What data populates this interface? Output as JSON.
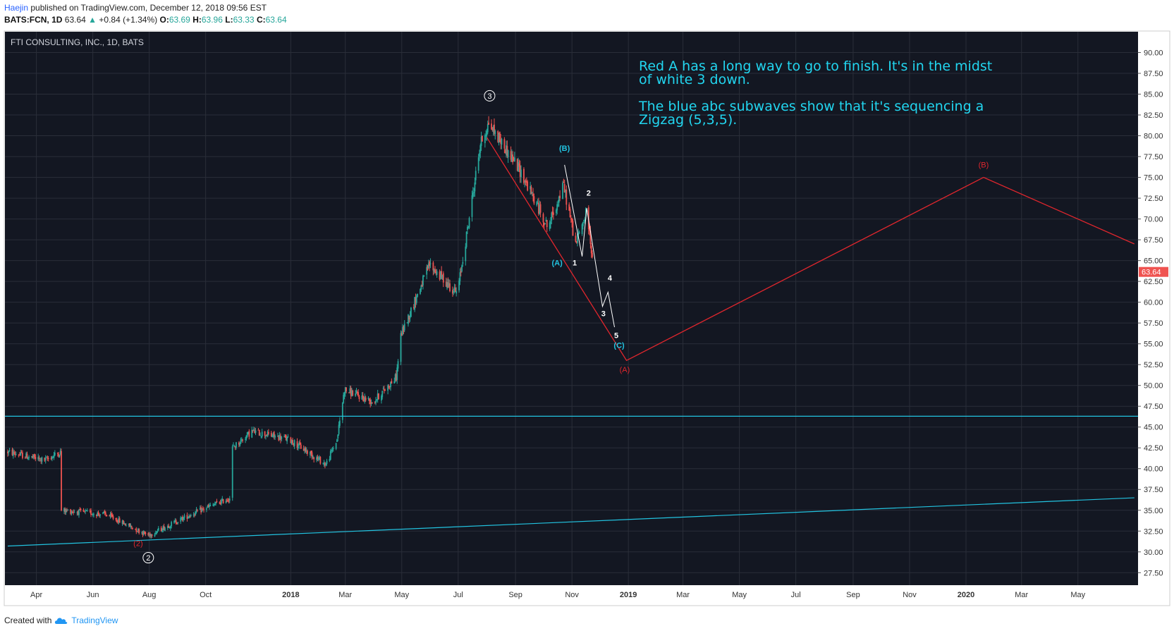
{
  "header": {
    "author": "Haejin",
    "published": "published on TradingView.com, December 12, 2018 09:56 EST",
    "symbol": "BATS:FCN, 1D",
    "last": "63.64",
    "change": "+0.84 (+1.34%)",
    "o_label": "O:",
    "o_value": "63.69",
    "h_label": "H:",
    "h_value": "63.96",
    "l_label": "L:",
    "l_value": "63.33",
    "c_label": "C:",
    "c_value": "63.64",
    "up_arrow": "▲"
  },
  "footer": {
    "created_with": "Created with",
    "brand": "TradingView"
  },
  "chart_data": {
    "type": "candlestick",
    "title": "FTI CONSULTING, INC., 1D, BATS",
    "ylim": [
      26.0,
      92.5
    ],
    "y_ticks": [
      "27.50",
      "30.00",
      "32.50",
      "35.00",
      "37.50",
      "40.00",
      "42.50",
      "45.00",
      "47.50",
      "50.00",
      "52.50",
      "55.00",
      "57.50",
      "60.00",
      "62.50",
      "65.00",
      "67.50",
      "70.00",
      "72.50",
      "75.00",
      "77.50",
      "80.00",
      "82.50",
      "85.00",
      "87.50",
      "90.00"
    ],
    "x_ticks": [
      "Apr",
      "Jun",
      "Aug",
      "Oct",
      "2018",
      "Mar",
      "May",
      "Jul",
      "Sep",
      "Nov",
      "2019",
      "Mar",
      "May",
      "Jul",
      "Sep",
      "Nov",
      "2020",
      "Mar",
      "May"
    ],
    "last_price_label": "63.64",
    "price_path_anchors": [
      {
        "date": "2017-03-01",
        "price": 42.0
      },
      {
        "date": "2017-04-10",
        "price": 41.0
      },
      {
        "date": "2017-04-27",
        "price": 42.0
      },
      {
        "date": "2017-04-28",
        "price": 35.0
      },
      {
        "date": "2017-06-15",
        "price": 34.5
      },
      {
        "date": "2017-07-31",
        "price": 32.0
      },
      {
        "date": "2017-09-15",
        "price": 34.5
      },
      {
        "date": "2017-10-28",
        "price": 36.5
      },
      {
        "date": "2017-10-30",
        "price": 42.5
      },
      {
        "date": "2017-11-20",
        "price": 44.5
      },
      {
        "date": "2017-12-31",
        "price": 43.5
      },
      {
        "date": "2018-02-08",
        "price": 40.5
      },
      {
        "date": "2018-02-20",
        "price": 43.5
      },
      {
        "date": "2018-02-28",
        "price": 49.5
      },
      {
        "date": "2018-03-31",
        "price": 48.0
      },
      {
        "date": "2018-04-25",
        "price": 51.0
      },
      {
        "date": "2018-04-30",
        "price": 56.0
      },
      {
        "date": "2018-05-31",
        "price": 64.5
      },
      {
        "date": "2018-06-30",
        "price": 61.0
      },
      {
        "date": "2018-07-10",
        "price": 68.0
      },
      {
        "date": "2018-07-25",
        "price": 79.0
      },
      {
        "date": "2018-08-03",
        "price": 81.5
      },
      {
        "date": "2018-09-05",
        "price": 76.0
      },
      {
        "date": "2018-10-06",
        "price": 69.0
      },
      {
        "date": "2018-10-23",
        "price": 74.0
      },
      {
        "date": "2018-11-05",
        "price": 67.0
      },
      {
        "date": "2018-11-17",
        "price": 71.0
      },
      {
        "date": "2018-11-25",
        "price": 63.64
      }
    ],
    "overlays": {
      "red_wave": [
        {
          "date": "2018-08-01",
          "price": 79.8
        },
        {
          "date": "2018-12-30",
          "price": 53.0
        },
        {
          "date": "2020-01-20",
          "price": 75.0
        },
        {
          "date": "2020-07-01",
          "price": 67.0
        }
      ],
      "white_wave": [
        {
          "date": "2018-10-24",
          "price": 76.5
        },
        {
          "date": "2018-11-12",
          "price": 65.5
        },
        {
          "date": "2018-11-17",
          "price": 71.3
        },
        {
          "date": "2018-12-04",
          "price": 59.5
        },
        {
          "date": "2018-12-10",
          "price": 61.2
        },
        {
          "date": "2018-12-17",
          "price": 57.0
        }
      ],
      "cyan_horizontal": {
        "price": 46.3
      },
      "cyan_trendline": [
        {
          "date": "2017-03-01",
          "price": 30.7
        },
        {
          "date": "2020-07-01",
          "price": 36.5
        }
      ]
    },
    "labels": [
      {
        "text": "(B)",
        "color": "cyan",
        "date": "2018-10-24",
        "price": 78.2
      },
      {
        "text": "(A)",
        "color": "cyan",
        "date": "2018-10-16",
        "price": 64.4
      },
      {
        "text": "1",
        "color": "white",
        "date": "2018-11-04",
        "price": 64.4
      },
      {
        "text": "2",
        "color": "white",
        "date": "2018-11-19",
        "price": 72.8
      },
      {
        "text": "3",
        "color": "white",
        "date": "2018-12-05",
        "price": 58.3
      },
      {
        "text": "4",
        "color": "white",
        "date": "2018-12-12",
        "price": 62.6
      },
      {
        "text": "5",
        "color": "white",
        "date": "2018-12-19",
        "price": 55.7
      },
      {
        "text": "(C)",
        "color": "cyan",
        "date": "2018-12-22",
        "price": 54.5
      },
      {
        "text": "(A)",
        "color": "red",
        "date": "2018-12-28",
        "price": 51.6
      },
      {
        "text": "(B)",
        "color": "red",
        "date": "2020-01-20",
        "price": 76.2
      },
      {
        "text": "(2)",
        "color": "red",
        "date": "2017-07-20",
        "price": 30.7
      }
    ],
    "circled_labels": [
      {
        "text": "3",
        "date": "2018-08-04",
        "price": 84.8
      },
      {
        "text": "2",
        "date": "2017-07-31",
        "price": 29.3
      }
    ],
    "annotation": [
      "Red A has a long way to go to finish. It's in the midst",
      "of white 3 down.",
      "",
      "The blue abc subwaves show that it's sequencing a",
      "Zigzag (5,3,5)."
    ],
    "colors": {
      "background": "#131722",
      "up": "#26a69a",
      "down": "#ef5350",
      "red_wave": "#e0262d",
      "cyan": "#22c3e0",
      "annotation": "#22d6f0",
      "grid": "#2a2e39"
    }
  }
}
